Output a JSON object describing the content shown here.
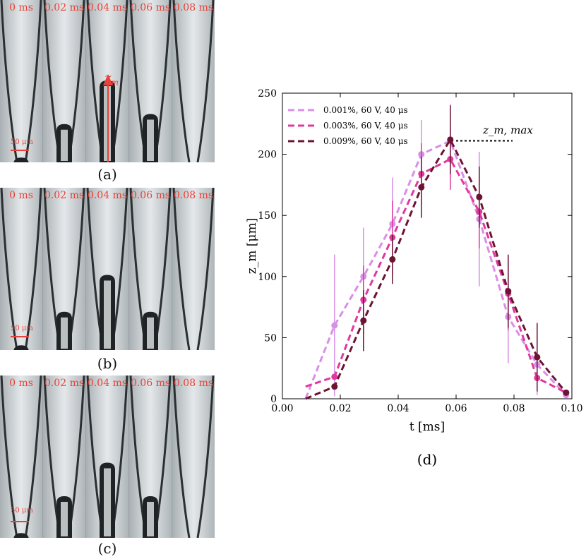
{
  "panels": [
    {
      "id": "a",
      "caption": "(a)",
      "times": [
        "0 ms",
        "0.02 ms",
        "0.04 ms",
        "0.06 ms",
        "0.08 ms"
      ],
      "scale_label": "50 μm",
      "jet_heights_um": [
        5,
        55,
        120,
        70,
        0
      ],
      "annotation_label": "z",
      "annotation_sub": "m"
    },
    {
      "id": "b",
      "caption": "(b)",
      "times": [
        "0 ms",
        "0.02 ms",
        "0.04 ms",
        "0.06 ms",
        "0.08 ms"
      ],
      "scale_label": "50 μm",
      "jet_heights_um": [
        5,
        55,
        110,
        55,
        0
      ]
    },
    {
      "id": "c",
      "caption": "(c)",
      "times": [
        "0 ms",
        "0.02 ms",
        "0.04 ms",
        "0.06 ms",
        "0.08 ms"
      ],
      "scale_label": "50 μm",
      "jet_heights_um": [
        5,
        60,
        110,
        60,
        0
      ]
    }
  ],
  "chart_caption": "(d)",
  "chart_data": {
    "type": "line",
    "xlabel": "t [ms]",
    "ylabel": "z_m [μm]",
    "xlim": [
      0.0,
      0.1
    ],
    "ylim": [
      0,
      250
    ],
    "xticks": [
      "0.00",
      "0.02",
      "0.04",
      "0.06",
      "0.08",
      "0.10"
    ],
    "yticks": [
      "0",
      "50",
      "100",
      "150",
      "200",
      "250"
    ],
    "annotation": "z_m, max",
    "annotation_x": 0.06,
    "annotation_y": 211,
    "legend_position": "top-left",
    "series": [
      {
        "name": "0.001%, 60 V, 40 μs",
        "color": "#d98ee8",
        "x": [
          0.008,
          0.018,
          0.028,
          0.038,
          0.048,
          0.058,
          0.068,
          0.078,
          0.088,
          0.098
        ],
        "y": [
          0,
          60,
          100,
          143,
          200,
          211,
          147,
          67,
          28,
          3
        ],
        "err": [
          0,
          58,
          40,
          38,
          28,
          30,
          55,
          38,
          25,
          0
        ],
        "markers_from": 1
      },
      {
        "name": "0.003%, 60 V, 40 μs",
        "color": "#e0399e",
        "x": [
          0.008,
          0.018,
          0.028,
          0.038,
          0.048,
          0.058,
          0.068,
          0.078,
          0.088,
          0.098
        ],
        "y": [
          10,
          18,
          81,
          132,
          184,
          196,
          153,
          86,
          17,
          5
        ],
        "err": [
          0,
          0,
          28,
          30,
          25,
          25,
          30,
          30,
          0,
          0
        ],
        "markers_from": 1
      },
      {
        "name": "0.009%, 60 V, 40 μs",
        "color": "#6b1433",
        "x": [
          0.008,
          0.018,
          0.028,
          0.038,
          0.048,
          0.058,
          0.068,
          0.078,
          0.088,
          0.098
        ],
        "y": [
          0,
          10,
          64,
          114,
          173,
          212,
          165,
          88,
          34,
          5
        ],
        "err": [
          0,
          0,
          25,
          20,
          25,
          28,
          25,
          30,
          28,
          0
        ],
        "markers_from": 1
      }
    ]
  }
}
